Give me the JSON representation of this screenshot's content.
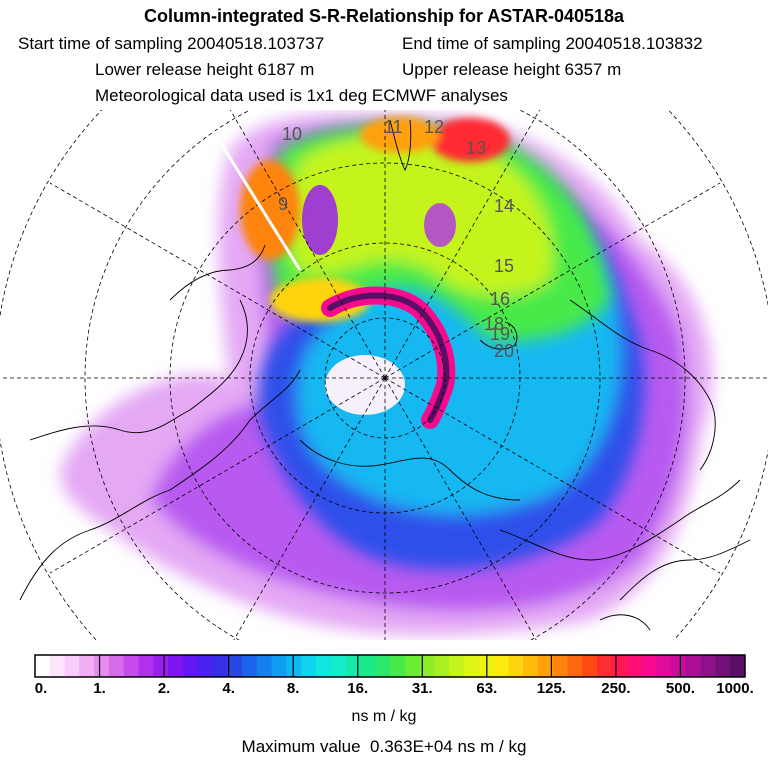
{
  "header": {
    "title": "Column-integrated S-R-Relationship for ASTAR-040518a",
    "start_time": "Start time of sampling 20040518.103737",
    "end_time": "End time of sampling 20040518.103832",
    "lower_height": "Lower release height 6187 m",
    "upper_height": "Upper release height 6357 m",
    "met_data": "Meteorological data used is 1x1 deg ECMWF analyses"
  },
  "map": {
    "projection": "polar-stereographic-north",
    "contour_labels": [
      "10",
      "11",
      "12",
      "13",
      "14",
      "15",
      "16",
      "18",
      "19",
      "20",
      "9"
    ]
  },
  "colorbar": {
    "ticks": [
      "0.",
      "1.",
      "2.",
      "4.",
      "8.",
      "16.",
      "31.",
      "63.",
      "125.",
      "250.",
      "500.",
      "1000."
    ],
    "colors": [
      "#ffffff",
      "#fde6fd",
      "#f9ccf9",
      "#f2aef4",
      "#e68cf0",
      "#d86aee",
      "#c64ced",
      "#b030ec",
      "#9a1df0",
      "#7e14f2",
      "#6118f2",
      "#4a22ee",
      "#3530e8",
      "#2848e6",
      "#1c64ea",
      "#1480ee",
      "#109cf2",
      "#10b8f2",
      "#10d4ee",
      "#12e6e0",
      "#14eec8",
      "#18e8aa",
      "#1ce88a",
      "#2ae86a",
      "#46ea4a",
      "#6aec34",
      "#8cee28",
      "#a8f022",
      "#c4f41c",
      "#dcf616",
      "#eef214",
      "#ffea10",
      "#ffd40e",
      "#ffba0c",
      "#ffa00c",
      "#ff840c",
      "#ff680e",
      "#ff4814",
      "#ff2c30",
      "#ff1a52",
      "#ff1072",
      "#f60a8e",
      "#e20a9c",
      "#c80c9e",
      "#ac0e96",
      "#8e108a",
      "#72107a",
      "#5a0e66"
    ],
    "unit": "ns m / kg"
  },
  "footer": {
    "max_value": "Maximum value  0.363E+04 ns m / kg"
  }
}
